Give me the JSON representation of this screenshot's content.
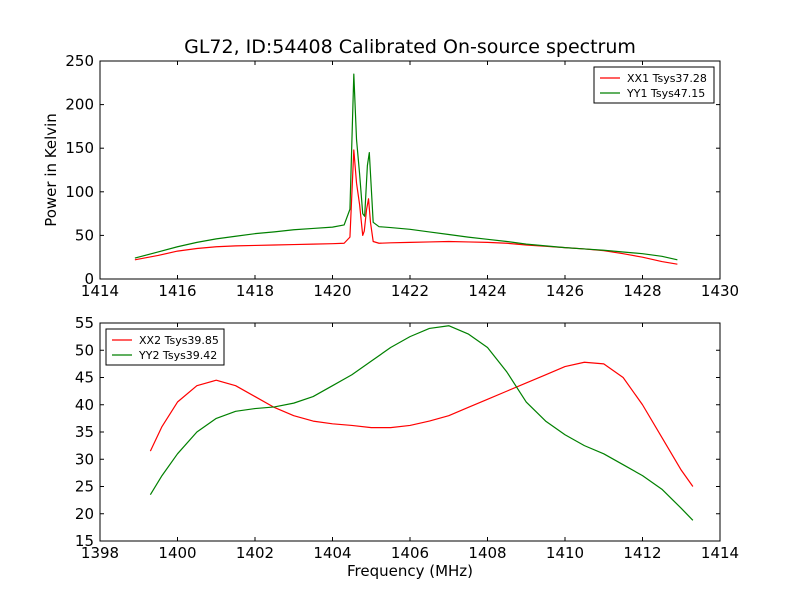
{
  "figure": {
    "title": "GL72, ID:54408 Calibrated On-source spectrum"
  },
  "chart_data": [
    {
      "type": "line",
      "title": "GL72, ID:54408 Calibrated On-source spectrum",
      "xlabel": "",
      "ylabel": "Power in Kelvin",
      "xlim": [
        1414,
        1430
      ],
      "ylim": [
        0,
        250
      ],
      "xticks": [
        1414,
        1416,
        1418,
        1420,
        1422,
        1424,
        1426,
        1428,
        1430
      ],
      "yticks": [
        0,
        50,
        100,
        150,
        200,
        250
      ],
      "grid": false,
      "legend_position": "top-right",
      "series": [
        {
          "name": "XX1 Tsys37.28",
          "color": "#ff0000",
          "x": [
            1414.9,
            1415.5,
            1416.0,
            1416.5,
            1417.0,
            1417.5,
            1418.0,
            1418.5,
            1419.0,
            1419.5,
            1420.0,
            1420.3,
            1420.45,
            1420.55,
            1420.62,
            1420.7,
            1420.78,
            1420.82,
            1420.88,
            1420.93,
            1420.98,
            1421.05,
            1421.2,
            1421.5,
            1422.0,
            1422.5,
            1423.0,
            1423.5,
            1424.0,
            1424.5,
            1425.0,
            1425.5,
            1426.0,
            1426.5,
            1427.0,
            1427.5,
            1428.0,
            1428.5,
            1428.9
          ],
          "values": [
            22,
            27,
            32,
            35,
            37,
            38,
            38.5,
            39,
            39.5,
            40,
            40.5,
            41,
            48,
            148,
            110,
            85,
            50,
            55,
            80,
            92,
            65,
            43,
            41,
            41.5,
            42,
            42.5,
            43,
            42.5,
            42,
            41,
            39,
            37.5,
            36,
            34.5,
            32.5,
            29,
            25,
            20,
            17
          ]
        },
        {
          "name": "YY1 Tsys47.15",
          "color": "#008000",
          "x": [
            1414.9,
            1415.5,
            1416.0,
            1416.5,
            1417.0,
            1417.5,
            1418.0,
            1418.5,
            1419.0,
            1419.5,
            1420.0,
            1420.3,
            1420.45,
            1420.55,
            1420.62,
            1420.7,
            1420.78,
            1420.83,
            1420.9,
            1420.95,
            1421.05,
            1421.2,
            1421.5,
            1422.0,
            1422.5,
            1423.0,
            1423.5,
            1424.0,
            1424.5,
            1425.0,
            1425.5,
            1426.0,
            1426.5,
            1427.0,
            1427.5,
            1428.0,
            1428.5,
            1428.9
          ],
          "values": [
            24,
            31,
            37,
            42,
            46,
            49,
            52,
            54,
            56.5,
            58,
            59.5,
            62,
            80,
            235,
            160,
            120,
            75,
            72,
            130,
            145,
            65,
            60,
            59,
            57,
            54,
            51,
            48,
            45.5,
            43,
            40,
            38,
            36,
            34.5,
            33,
            31,
            29,
            26,
            22
          ]
        }
      ]
    },
    {
      "type": "line",
      "title": "",
      "xlabel": "Frequency (MHz)",
      "ylabel": "",
      "xlim": [
        1398,
        1414
      ],
      "ylim": [
        15,
        55
      ],
      "xticks": [
        1398,
        1400,
        1402,
        1404,
        1406,
        1408,
        1410,
        1412,
        1414
      ],
      "yticks": [
        15,
        20,
        25,
        30,
        35,
        40,
        45,
        50,
        55
      ],
      "grid": false,
      "legend_position": "top-left",
      "series": [
        {
          "name": "XX2 Tsys39.85",
          "color": "#ff0000",
          "x": [
            1399.3,
            1399.6,
            1400.0,
            1400.5,
            1401.0,
            1401.5,
            1402.0,
            1402.5,
            1403.0,
            1403.5,
            1404.0,
            1404.5,
            1405.0,
            1405.5,
            1406.0,
            1406.5,
            1407.0,
            1407.5,
            1408.0,
            1408.5,
            1409.0,
            1409.5,
            1410.0,
            1410.5,
            1411.0,
            1411.5,
            1412.0,
            1412.5,
            1413.0,
            1413.3
          ],
          "values": [
            31.5,
            36,
            40.5,
            43.5,
            44.5,
            43.5,
            41.5,
            39.5,
            38,
            37,
            36.5,
            36.2,
            35.8,
            35.8,
            36.2,
            37,
            38,
            39.5,
            41,
            42.5,
            44,
            45.5,
            47,
            47.8,
            47.5,
            45,
            40,
            34,
            28,
            25
          ]
        },
        {
          "name": "YY2 Tsys39.42",
          "color": "#008000",
          "x": [
            1399.3,
            1399.6,
            1400.0,
            1400.5,
            1401.0,
            1401.5,
            1402.0,
            1402.5,
            1403.0,
            1403.5,
            1404.0,
            1404.5,
            1405.0,
            1405.5,
            1406.0,
            1406.5,
            1407.0,
            1407.5,
            1408.0,
            1408.5,
            1409.0,
            1409.5,
            1410.0,
            1410.5,
            1411.0,
            1411.5,
            1412.0,
            1412.5,
            1413.0,
            1413.3
          ],
          "values": [
            23.5,
            27,
            31,
            35,
            37.5,
            38.8,
            39.3,
            39.6,
            40.3,
            41.5,
            43.5,
            45.5,
            48,
            50.5,
            52.5,
            54,
            54.5,
            53,
            50.5,
            46,
            40.5,
            37,
            34.5,
            32.5,
            31,
            29,
            27,
            24.5,
            21,
            18.8
          ]
        }
      ]
    }
  ]
}
